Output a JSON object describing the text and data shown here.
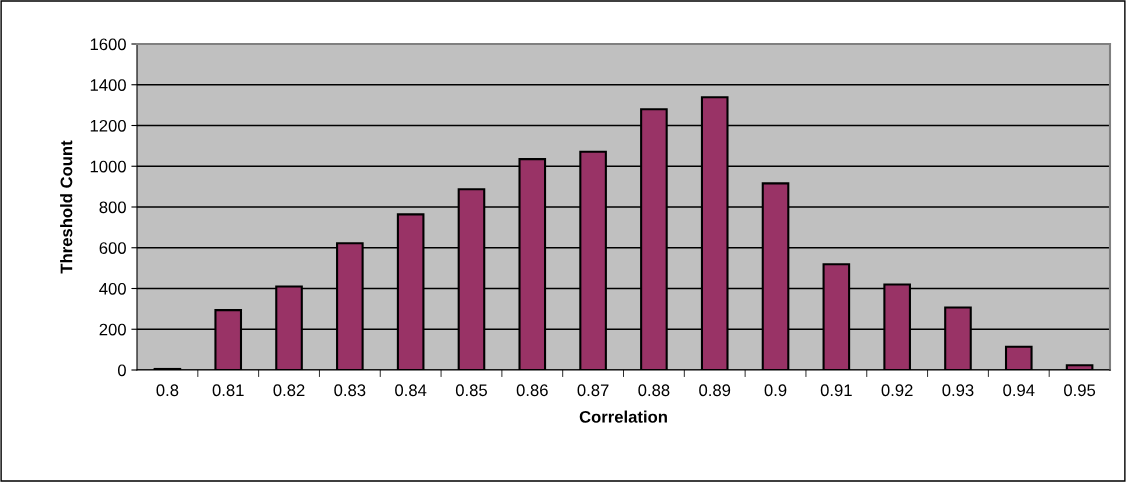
{
  "chart_data": {
    "type": "bar",
    "xlabel": "Correlation",
    "ylabel": "Threshold Count",
    "categories": [
      "0.8",
      "0.81",
      "0.82",
      "0.83",
      "0.84",
      "0.85",
      "0.86",
      "0.87",
      "0.88",
      "0.89",
      "0.9",
      "0.91",
      "0.92",
      "0.93",
      "0.94",
      "0.95"
    ],
    "values": [
      5,
      294,
      410,
      622,
      764,
      887,
      1035,
      1071,
      1280,
      1339,
      916,
      519,
      420,
      307,
      114,
      23
    ],
    "color": "#993366",
    "ylim": [
      0,
      1600
    ],
    "yticks": [
      0,
      200,
      400,
      600,
      800,
      1000,
      1200,
      1400,
      1600
    ],
    "grid": "y"
  }
}
